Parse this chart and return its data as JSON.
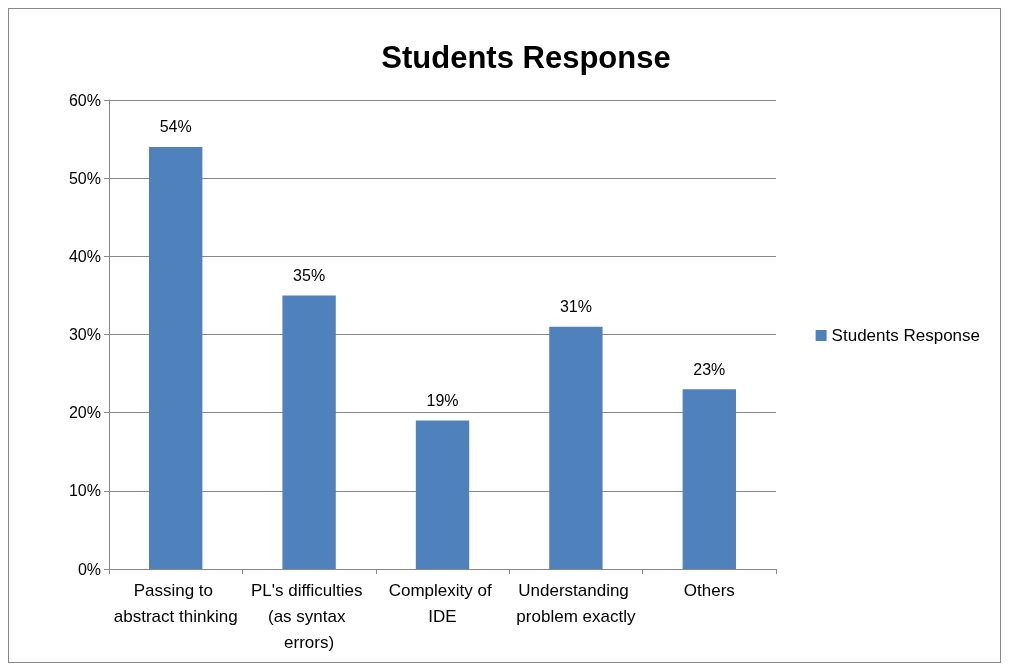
{
  "chart_data": {
    "type": "bar",
    "title": "Students Response",
    "categories": [
      "Passing to abstract thinking",
      "PL's difficulties (as syntax errors)",
      "Complexity of IDE",
      "Understanding problem exactly",
      "Others"
    ],
    "series": [
      {
        "name": "Students Response",
        "color": "#4f81bd",
        "values": [
          54,
          35,
          19,
          31,
          23
        ]
      }
    ],
    "value_labels": [
      "54%",
      "35%",
      "19%",
      "31%",
      "23%"
    ],
    "ylim": [
      0,
      60
    ],
    "yticks": [
      {
        "value": 0,
        "label": "0%"
      },
      {
        "value": 10,
        "label": "10%"
      },
      {
        "value": 20,
        "label": "20%"
      },
      {
        "value": 30,
        "label": "30%"
      },
      {
        "value": 40,
        "label": "40%"
      },
      {
        "value": 50,
        "label": "50%"
      },
      {
        "value": 60,
        "label": "60%"
      }
    ],
    "grid": "y",
    "legend": "right"
  }
}
